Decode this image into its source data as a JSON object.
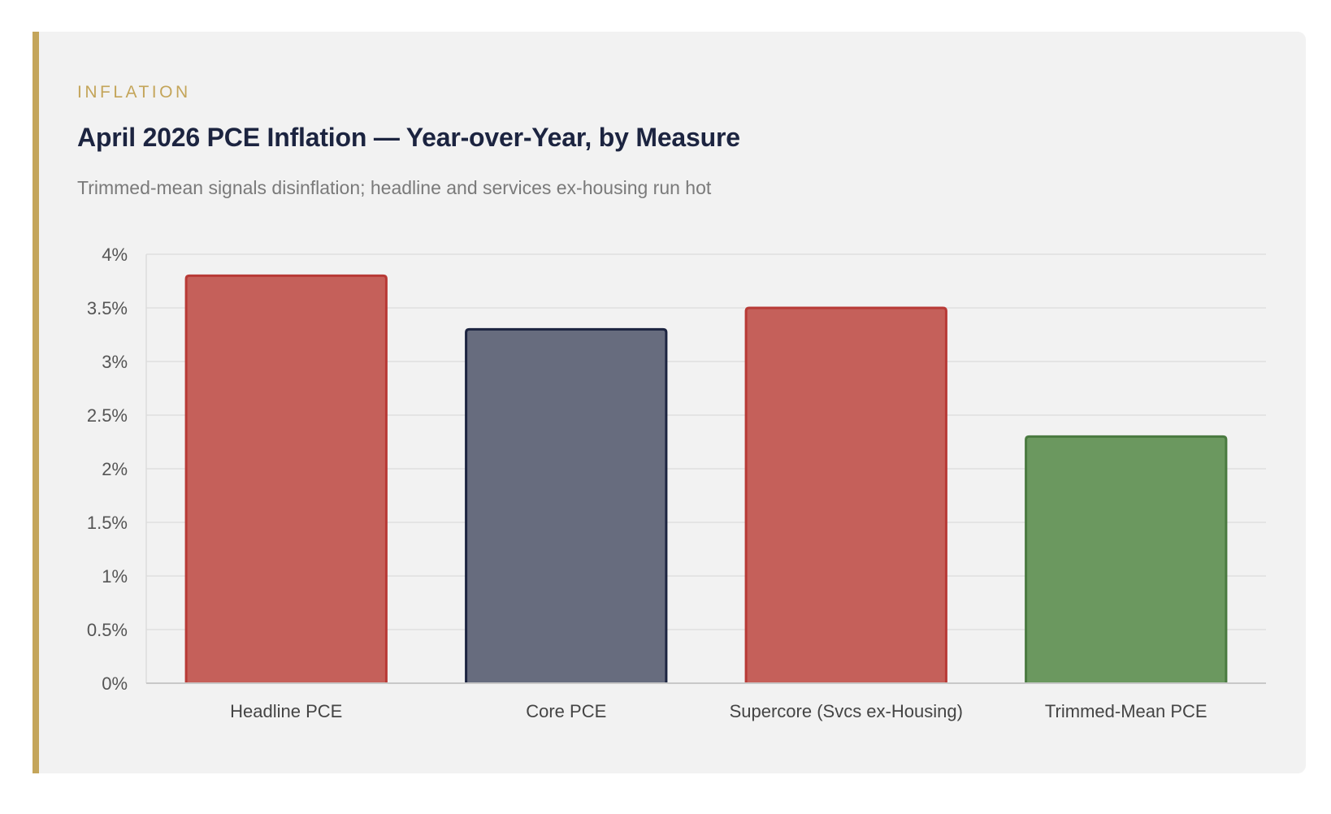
{
  "card": {
    "eyebrow": "INFLATION",
    "title": "April 2026 PCE Inflation — Year-over-Year, by Measure",
    "subtitle": "Trimmed-mean signals disinflation; headline and services ex-housing run hot"
  },
  "colors": {
    "accent": "#c4a55a",
    "hot_fill": "#c5605a",
    "hot_stroke": "#b83a36",
    "neutral_fill": "#676c7e",
    "neutral_stroke": "#1c2440",
    "cool_fill": "#6b985f",
    "cool_stroke": "#4a7a40"
  },
  "chart_data": {
    "type": "bar",
    "title": "April 2026 PCE Inflation — Year-over-Year, by Measure",
    "subtitle": "Trimmed-mean signals disinflation; headline and services ex-housing run hot",
    "categories": [
      "Headline PCE",
      "Core PCE",
      "Supercore (Svcs ex-Housing)",
      "Trimmed-Mean PCE"
    ],
    "values": [
      3.8,
      3.3,
      3.5,
      2.3
    ],
    "bar_tones": [
      "hot",
      "neutral",
      "hot",
      "cool"
    ],
    "ylim": [
      0,
      4
    ],
    "yticks": [
      0,
      0.5,
      1,
      1.5,
      2,
      2.5,
      3,
      3.5,
      4
    ],
    "ytick_labels": [
      "0%",
      "0.5%",
      "1%",
      "1.5%",
      "2%",
      "2.5%",
      "3%",
      "3.5%",
      "4%"
    ],
    "xlabel": "",
    "ylabel": "",
    "grid": true,
    "legend": "none"
  }
}
